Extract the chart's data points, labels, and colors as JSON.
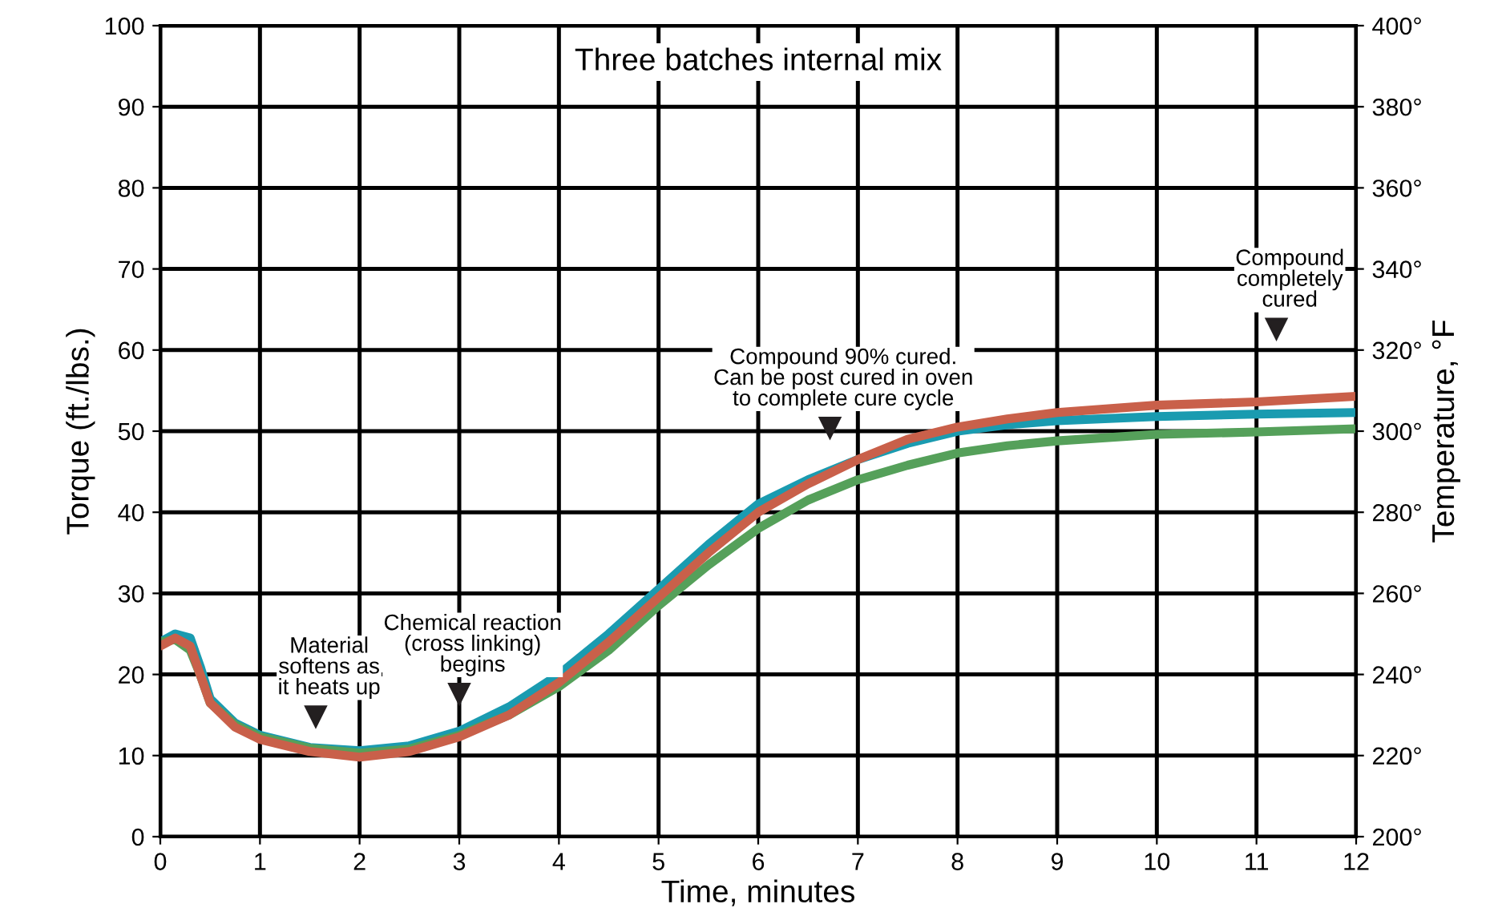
{
  "chart_data": {
    "type": "line",
    "title": "Three batches internal mix",
    "xlabel": "Time, minutes",
    "ylabel": "Torque (ft./lbs.)",
    "y2label": "Temperature, °F",
    "x": [
      0,
      0.15,
      0.3,
      0.4,
      0.5,
      0.75,
      1,
      1.5,
      2,
      2.5,
      3,
      3.5,
      4,
      4.5,
      5,
      5.5,
      6,
      6.5,
      7,
      7.5,
      8,
      8.5,
      9,
      10,
      11,
      12
    ],
    "series": [
      {
        "color": "#1a9bb0",
        "values": [
          24,
          25,
          24.5,
          21,
          17,
          14,
          12.5,
          11,
          10.6,
          11.2,
          13,
          16,
          20,
          25,
          30.5,
          36,
          41,
          44,
          46.5,
          48.5,
          50,
          50.8,
          51.3,
          51.8,
          52.1,
          52.3
        ]
      },
      {
        "color": "#55a05a",
        "values": [
          24,
          24.3,
          23,
          20,
          16.5,
          13.8,
          12.3,
          10.9,
          10.3,
          10.8,
          12.5,
          15,
          18.5,
          23,
          28.5,
          33.5,
          38,
          41.5,
          44,
          45.8,
          47.3,
          48.2,
          48.8,
          49.6,
          49.9,
          50.3
        ]
      },
      {
        "color": "#c9604a",
        "values": [
          23.5,
          24.5,
          23.5,
          20,
          16.5,
          13.5,
          12,
          10.5,
          9.8,
          10.5,
          12.3,
          15,
          19,
          24,
          29.5,
          35,
          40,
          43.5,
          46.5,
          49,
          50.5,
          51.5,
          52.3,
          53.2,
          53.6,
          54.3
        ]
      }
    ],
    "xlim": [
      0,
      12
    ],
    "xticks": [
      0,
      1,
      2,
      3,
      4,
      5,
      6,
      7,
      8,
      9,
      10,
      11,
      12
    ],
    "ylim": [
      0,
      100
    ],
    "yticks": [
      0,
      10,
      20,
      30,
      40,
      50,
      60,
      70,
      80,
      90,
      100
    ],
    "y2lim": [
      200,
      400
    ],
    "y2ticks": [
      {
        "value": 200,
        "label": "200°"
      },
      {
        "value": 220,
        "label": "220°"
      },
      {
        "value": 240,
        "label": "240°"
      },
      {
        "value": 260,
        "label": "260°"
      },
      {
        "value": 280,
        "label": "280°"
      },
      {
        "value": 300,
        "label": "300°"
      },
      {
        "value": 320,
        "label": "320°"
      },
      {
        "value": 340,
        "label": "340°"
      },
      {
        "value": 360,
        "label": "360°"
      },
      {
        "value": 380,
        "label": "380°"
      },
      {
        "value": 400,
        "label": "400°"
      }
    ],
    "annotations": [
      {
        "text": "Material\nsoftens as\nit heats up",
        "x": 1.56,
        "y": 14.8
      },
      {
        "text": "Chemical reaction\n(cross linking)\nbegins",
        "x": 3.0,
        "y": 17.6
      },
      {
        "text": "Compound 90% cured.\nCan be post cured in oven\nto complete cure cycle",
        "x": 6.72,
        "y": 50.4
      },
      {
        "text": "Compound\ncompletely\ncured",
        "x": 11.2,
        "y": 62.6
      }
    ],
    "grid": true,
    "marker": "none",
    "line_style": "solid"
  }
}
